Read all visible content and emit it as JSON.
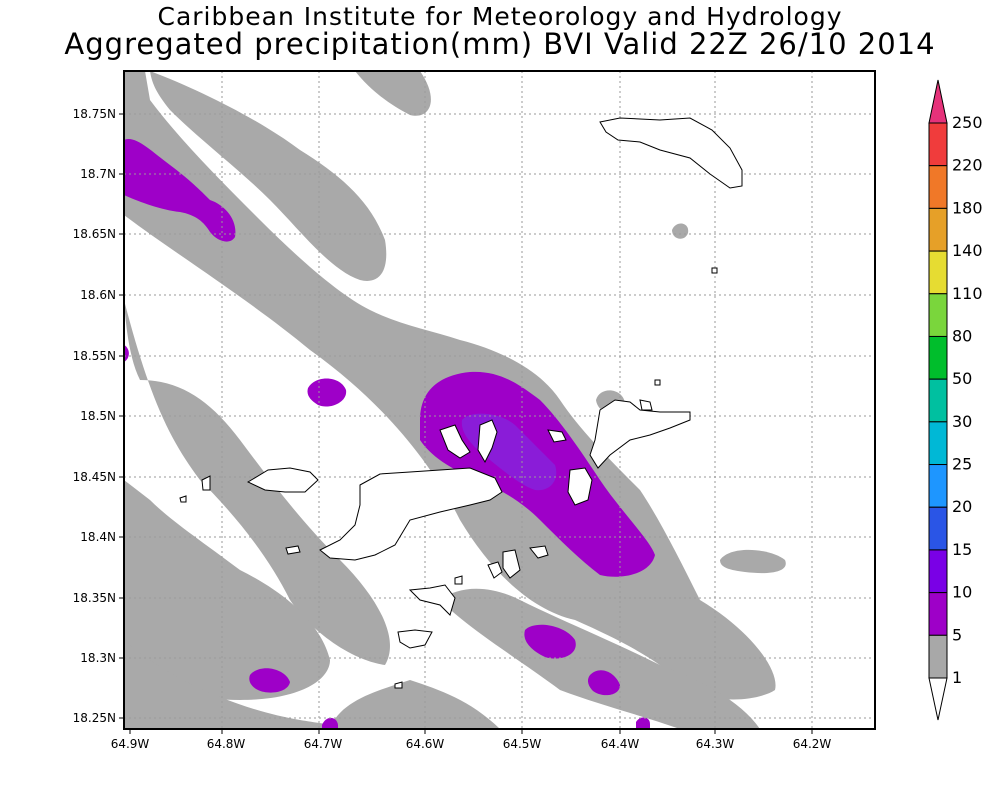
{
  "title_line1": "Caribbean Institute for Meteorology and Hydrology",
  "title_line2": "Aggregated precipitation(mm) BVI Valid 22Z 26/10 2014",
  "lat_labels": [
    "18.75N",
    "18.7N",
    "18.65N",
    "18.6N",
    "18.55N",
    "18.5N",
    "18.45N",
    "18.4N",
    "18.35N",
    "18.3N",
    "18.25N"
  ],
  "lon_labels": [
    "64.9W",
    "64.8W",
    "64.7W",
    "64.6W",
    "64.5W",
    "64.4W",
    "64.3W",
    "64.2W"
  ],
  "colorbar": {
    "levels": [
      "1",
      "5",
      "10",
      "15",
      "20",
      "25",
      "30",
      "50",
      "80",
      "110",
      "140",
      "180",
      "220",
      "250"
    ],
    "colors": [
      "#ffffff",
      "#a8a8a8",
      "#9e00c8",
      "#7a00e6",
      "#2a55e6",
      "#1e96ff",
      "#00b8d6",
      "#00c0a0",
      "#00be2c",
      "#7ad63c",
      "#e6dc32",
      "#e6a028",
      "#f07828",
      "#f03c3c",
      "#e6327a"
    ]
  }
}
